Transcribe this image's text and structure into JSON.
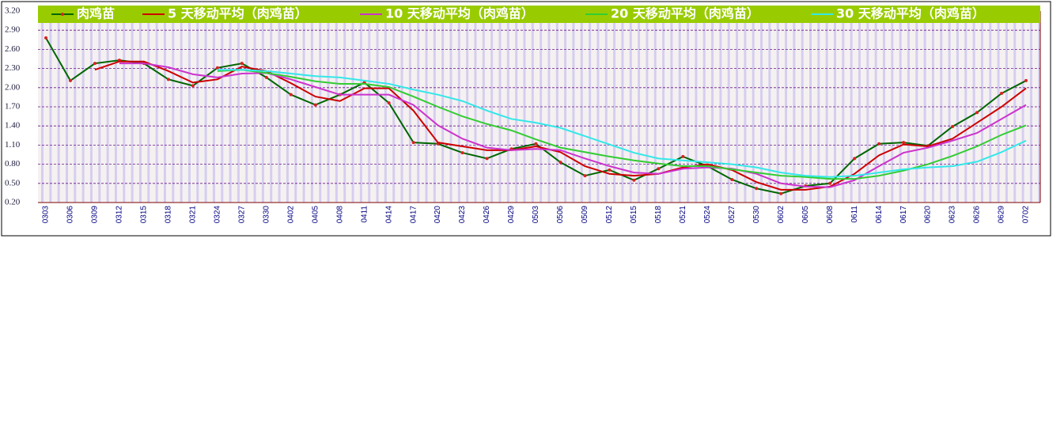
{
  "chart_data": {
    "type": "line",
    "categories": [
      "0303",
      "0306",
      "0309",
      "0312",
      "0315",
      "0318",
      "0321",
      "0324",
      "0327",
      "0330",
      "0402",
      "0405",
      "0408",
      "0411",
      "0414",
      "0417",
      "0420",
      "0423",
      "0426",
      "0429",
      "0503",
      "0506",
      "0509",
      "0512",
      "0515",
      "0518",
      "0521",
      "0524",
      "0527",
      "0530",
      "0602",
      "0605",
      "0608",
      "0611",
      "0614",
      "0617",
      "0620",
      "0623",
      "0626",
      "0629",
      "0702"
    ],
    "series": [
      {
        "name": "肉鸡苗",
        "color": "#006600",
        "marker_color": "#dd2222",
        "values": [
          2.78,
          2.11,
          2.38,
          2.43,
          2.38,
          2.13,
          2.03,
          2.31,
          2.38,
          2.16,
          1.89,
          1.73,
          1.89,
          2.08,
          1.76,
          1.14,
          1.12,
          0.98,
          0.89,
          1.04,
          1.12,
          0.83,
          0.62,
          0.71,
          0.55,
          0.73,
          0.92,
          0.77,
          0.56,
          0.42,
          0.34,
          0.46,
          0.5,
          0.89,
          1.12,
          1.14,
          1.09,
          1.39,
          1.61,
          1.91,
          2.11
        ]
      },
      {
        "name": "5 天移动平均（肉鸡苗）",
        "color": "#cc0000",
        "values": [
          null,
          null,
          2.28,
          2.41,
          2.41,
          2.26,
          2.08,
          2.13,
          2.33,
          2.26,
          2.07,
          1.86,
          1.79,
          1.99,
          1.99,
          1.64,
          1.14,
          1.08,
          1.02,
          1.02,
          1.08,
          0.99,
          0.77,
          0.65,
          0.62,
          0.65,
          0.75,
          0.8,
          0.71,
          0.52,
          0.4,
          0.4,
          0.45,
          0.65,
          0.94,
          1.11,
          1.08,
          1.2,
          1.45,
          1.7,
          1.99
        ]
      },
      {
        "name": "10 天移动平均（肉鸡苗）",
        "color": "#cc33cc",
        "values": [
          null,
          null,
          null,
          2.38,
          2.38,
          2.32,
          2.21,
          2.16,
          2.22,
          2.23,
          2.13,
          2.01,
          1.89,
          1.89,
          1.89,
          1.73,
          1.41,
          1.2,
          1.06,
          1.02,
          1.04,
          1.02,
          0.89,
          0.77,
          0.67,
          0.65,
          0.73,
          0.75,
          0.73,
          0.65,
          0.5,
          0.45,
          0.44,
          0.55,
          0.77,
          0.98,
          1.06,
          1.17,
          1.29,
          1.51,
          1.73
        ]
      },
      {
        "name": "20 天移动平均（肉鸡苗）",
        "color": "#33cc33",
        "values": [
          null,
          null,
          null,
          null,
          null,
          null,
          null,
          2.26,
          2.28,
          2.23,
          2.17,
          2.1,
          2.06,
          2.06,
          2.01,
          1.86,
          1.7,
          1.55,
          1.43,
          1.33,
          1.19,
          1.06,
          0.99,
          0.92,
          0.86,
          0.81,
          0.77,
          0.77,
          0.72,
          0.67,
          0.62,
          0.6,
          0.57,
          0.57,
          0.62,
          0.7,
          0.8,
          0.93,
          1.08,
          1.26,
          1.41
        ]
      },
      {
        "name": "30 天移动平均（肉鸡苗）",
        "color": "#33e8e8",
        "values": [
          null,
          null,
          null,
          null,
          null,
          null,
          null,
          2.28,
          2.28,
          2.26,
          2.22,
          2.18,
          2.16,
          2.11,
          2.06,
          1.97,
          1.89,
          1.79,
          1.64,
          1.51,
          1.45,
          1.37,
          1.24,
          1.11,
          0.98,
          0.89,
          0.86,
          0.83,
          0.8,
          0.75,
          0.67,
          0.62,
          0.6,
          0.62,
          0.67,
          0.72,
          0.75,
          0.77,
          0.84,
          0.99,
          1.17
        ]
      }
    ],
    "ylim": [
      0.2,
      3.2
    ],
    "yticks": [
      {
        "value": 3.2,
        "label": "3.20"
      },
      {
        "value": 2.9,
        "label": "2.90"
      },
      {
        "value": 2.6,
        "label": "2.60"
      },
      {
        "value": 2.3,
        "label": "2.30"
      },
      {
        "value": 2.0,
        "label": "2.00"
      },
      {
        "value": 1.7,
        "label": "1.70"
      },
      {
        "value": 1.4,
        "label": "1.40"
      },
      {
        "value": 1.1,
        "label": "1.10"
      },
      {
        "value": 0.8,
        "label": "0.80"
      },
      {
        "value": 0.5,
        "label": "0.50"
      },
      {
        "value": 0.2,
        "label": "0.20"
      }
    ],
    "grid": true,
    "legend": "top"
  }
}
